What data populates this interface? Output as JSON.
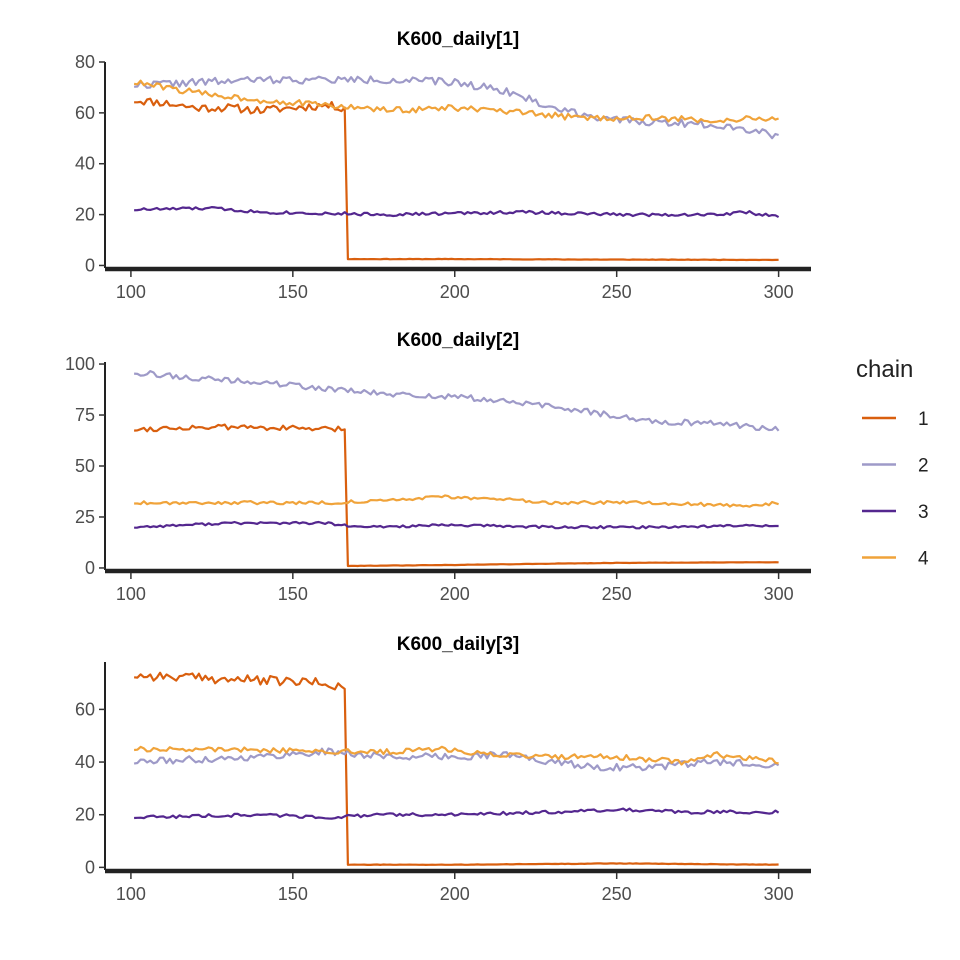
{
  "legend": {
    "title": "chain",
    "placement": "right",
    "entries": [
      {
        "label": "1",
        "color": "#D95F0E"
      },
      {
        "label": "2",
        "color": "#9E9AC8"
      },
      {
        "label": "3",
        "color": "#54278F"
      },
      {
        "label": "4",
        "color": "#F0A33A"
      }
    ]
  },
  "chart_data": [
    {
      "type": "line",
      "title": "K600_daily[1]",
      "xlabel": "",
      "ylabel": "",
      "xlim": [
        92,
        310
      ],
      "ylim": [
        -1,
        80
      ],
      "x_ticks": [
        100,
        150,
        200,
        250,
        300
      ],
      "y_ticks": [
        0,
        20,
        40,
        60,
        80
      ],
      "grid": false,
      "series": [
        {
          "name": "1",
          "color": "#D95F0E",
          "knots": [
            [
              101,
              65
            ],
            [
              110,
              64
            ],
            [
              120,
              62
            ],
            [
              130,
              62
            ],
            [
              140,
              61
            ],
            [
              150,
              62
            ],
            [
              160,
              63
            ],
            [
              166,
              62
            ],
            [
              167,
              2.5
            ],
            [
              180,
              2.5
            ],
            [
              200,
              2.5
            ],
            [
              250,
              2.3
            ],
            [
              300,
              2.2
            ]
          ],
          "noise": 1.6,
          "noise_end": 166,
          "seed": 11
        },
        {
          "name": "2",
          "color": "#9E9AC8",
          "knots": [
            [
              101,
              71
            ],
            [
              120,
              72
            ],
            [
              140,
              73
            ],
            [
              160,
              73
            ],
            [
              180,
              73
            ],
            [
              200,
              72
            ],
            [
              215,
              69
            ],
            [
              230,
              62
            ],
            [
              250,
              57
            ],
            [
              270,
              56
            ],
            [
              285,
              55
            ],
            [
              300,
              51
            ]
          ],
          "noise": 1.5,
          "seed": 22
        },
        {
          "name": "3",
          "color": "#54278F",
          "knots": [
            [
              101,
              22
            ],
            [
              125,
              22.5
            ],
            [
              140,
              21
            ],
            [
              160,
              20.5
            ],
            [
              180,
              20
            ],
            [
              200,
              20.5
            ],
            [
              220,
              21
            ],
            [
              250,
              20
            ],
            [
              280,
              20
            ],
            [
              290,
              21
            ],
            [
              300,
              19
            ]
          ],
          "noise": 0.6,
          "seed": 33
        },
        {
          "name": "4",
          "color": "#F0A33A",
          "knots": [
            [
              101,
              72
            ],
            [
              120,
              68
            ],
            [
              140,
              65
            ],
            [
              160,
              63
            ],
            [
              180,
              61
            ],
            [
              200,
              62
            ],
            [
              220,
              60
            ],
            [
              240,
              58
            ],
            [
              260,
              58
            ],
            [
              280,
              57
            ],
            [
              300,
              58
            ]
          ],
          "noise": 1.2,
          "seed": 44
        }
      ]
    },
    {
      "type": "line",
      "title": "K600_daily[2]",
      "xlabel": "",
      "ylabel": "",
      "xlim": [
        92,
        310
      ],
      "ylim": [
        -1,
        101
      ],
      "x_ticks": [
        100,
        150,
        200,
        250,
        300
      ],
      "y_ticks": [
        0,
        25,
        50,
        75,
        100
      ],
      "grid": false,
      "series": [
        {
          "name": "1",
          "color": "#D95F0E",
          "knots": [
            [
              101,
              68
            ],
            [
              120,
              69
            ],
            [
              140,
              69
            ],
            [
              160,
              68
            ],
            [
              166,
              68
            ],
            [
              167,
              1
            ],
            [
              200,
              1.5
            ],
            [
              250,
              2.5
            ],
            [
              300,
              2.8
            ]
          ],
          "noise": 1.3,
          "noise_end": 166,
          "seed": 55
        },
        {
          "name": "2",
          "color": "#9E9AC8",
          "knots": [
            [
              101,
              96
            ],
            [
              120,
              93
            ],
            [
              140,
              91
            ],
            [
              160,
              88
            ],
            [
              180,
              85
            ],
            [
              200,
              84
            ],
            [
              220,
              81
            ],
            [
              240,
              77
            ],
            [
              260,
              72
            ],
            [
              280,
              71
            ],
            [
              300,
              68
            ]
          ],
          "noise": 1.4,
          "seed": 66
        },
        {
          "name": "3",
          "color": "#54278F",
          "knots": [
            [
              101,
              20
            ],
            [
              130,
              22
            ],
            [
              160,
              22
            ],
            [
              170,
              20
            ],
            [
              200,
              21
            ],
            [
              230,
              20
            ],
            [
              260,
              20
            ],
            [
              300,
              21
            ]
          ],
          "noise": 0.6,
          "seed": 77
        },
        {
          "name": "4",
          "color": "#F0A33A",
          "knots": [
            [
              101,
              32
            ],
            [
              130,
              32
            ],
            [
              160,
              32
            ],
            [
              180,
              33
            ],
            [
              195,
              35
            ],
            [
              210,
              34
            ],
            [
              230,
              32
            ],
            [
              260,
              32
            ],
            [
              280,
              31
            ],
            [
              290,
              30
            ],
            [
              300,
              32
            ]
          ],
          "noise": 0.8,
          "seed": 88
        }
      ]
    },
    {
      "type": "line",
      "title": "K600_daily[3]",
      "xlabel": "",
      "ylabel": "",
      "xlim": [
        92,
        310
      ],
      "ylim": [
        -1,
        78
      ],
      "x_ticks": [
        100,
        150,
        200,
        250,
        300
      ],
      "y_ticks": [
        0,
        20,
        40,
        60
      ],
      "grid": false,
      "series": [
        {
          "name": "1",
          "color": "#D95F0E",
          "knots": [
            [
              101,
              73
            ],
            [
              120,
              72
            ],
            [
              140,
              71
            ],
            [
              160,
              70
            ],
            [
              166,
              68
            ],
            [
              167,
              1
            ],
            [
              200,
              1
            ],
            [
              250,
              1.5
            ],
            [
              300,
              1
            ]
          ],
          "noise": 1.8,
          "noise_end": 166,
          "seed": 99
        },
        {
          "name": "2",
          "color": "#9E9AC8",
          "knots": [
            [
              101,
              40
            ],
            [
              120,
              41
            ],
            [
              140,
              42
            ],
            [
              160,
              44
            ],
            [
              180,
              42
            ],
            [
              200,
              42
            ],
            [
              215,
              43
            ],
            [
              230,
              40
            ],
            [
              245,
              38
            ],
            [
              260,
              38
            ],
            [
              280,
              40
            ],
            [
              300,
              39
            ]
          ],
          "noise": 1.3,
          "seed": 111
        },
        {
          "name": "3",
          "color": "#54278F",
          "knots": [
            [
              101,
              19
            ],
            [
              140,
              20
            ],
            [
              160,
              19
            ],
            [
              180,
              20
            ],
            [
              200,
              20
            ],
            [
              230,
              21
            ],
            [
              250,
              22
            ],
            [
              270,
              21
            ],
            [
              300,
              21
            ]
          ],
          "noise": 0.6,
          "seed": 122
        },
        {
          "name": "4",
          "color": "#F0A33A",
          "knots": [
            [
              101,
              45
            ],
            [
              130,
              45
            ],
            [
              160,
              44
            ],
            [
              180,
              44
            ],
            [
              195,
              45
            ],
            [
              210,
              43
            ],
            [
              230,
              42
            ],
            [
              250,
              42
            ],
            [
              270,
              40
            ],
            [
              280,
              43
            ],
            [
              300,
              40
            ]
          ],
          "noise": 1.0,
          "seed": 133
        }
      ]
    }
  ]
}
